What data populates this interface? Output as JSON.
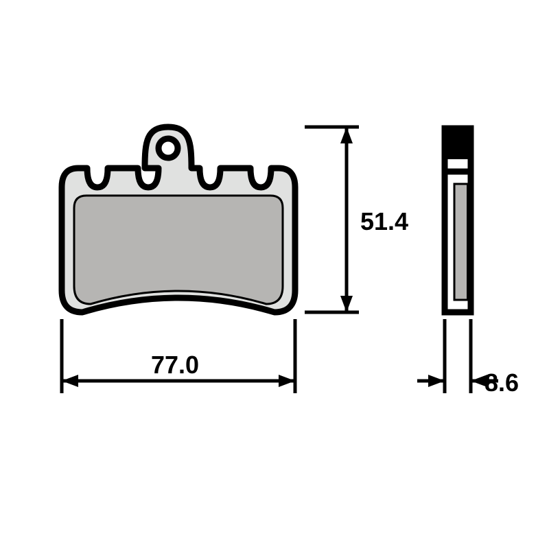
{
  "diagram": {
    "type": "technical-drawing",
    "background_color": "#ffffff",
    "stroke_color": "#000000",
    "front_view": {
      "fill_outer": "#e0e1e0",
      "fill_inner": "#b6b5b3",
      "stroke_width_outer": 9,
      "stroke_width_inner": 3,
      "ring_hole_fill": "#ffffff"
    },
    "side_view": {
      "gap_fill": "#ffffff",
      "plate_fill": "#b6b5b3",
      "stroke_width": 9
    },
    "dimensions": {
      "width": {
        "value": "77.0",
        "font_size": 36
      },
      "height": {
        "value": "51.4",
        "font_size": 36
      },
      "thickness": {
        "value": "8.6",
        "font_size": 36
      }
    },
    "dimension_line": {
      "stroke_width": 5,
      "arrow_length": 24,
      "arrow_half_width": 9
    }
  }
}
